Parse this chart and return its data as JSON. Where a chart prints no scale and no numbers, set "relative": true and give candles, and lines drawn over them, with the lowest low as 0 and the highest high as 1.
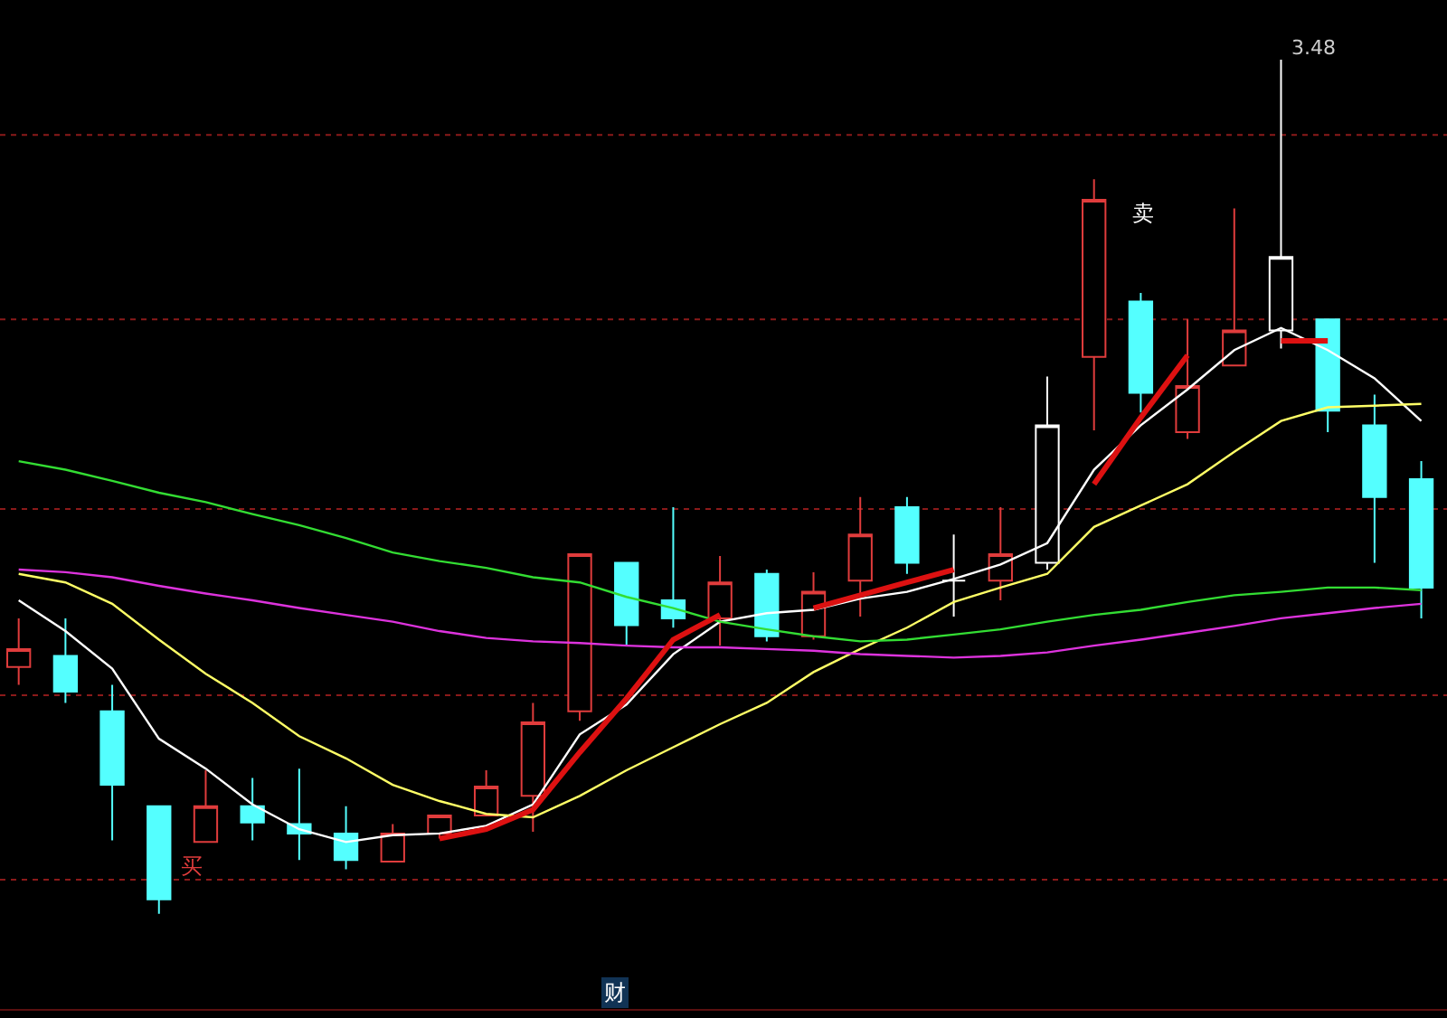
{
  "chart_data": {
    "type": "candlestick",
    "relative": true,
    "categories": [
      null,
      null,
      null,
      null,
      null,
      null,
      null,
      null,
      null,
      null,
      null,
      null,
      null,
      null,
      null,
      null,
      null,
      null,
      null,
      null,
      null,
      null,
      null,
      null,
      null,
      null,
      null,
      null,
      null,
      null,
      null
    ],
    "ohlc": [
      [
        0.289,
        0.346,
        0.268,
        0.31
      ],
      [
        0.302,
        0.346,
        0.247,
        0.26
      ],
      [
        0.237,
        0.268,
        0.086,
        0.151
      ],
      [
        0.126,
        0.126,
        0.0,
        0.017
      ],
      [
        0.084,
        0.168,
        0.084,
        0.126
      ],
      [
        0.126,
        0.159,
        0.086,
        0.107
      ],
      [
        0.105,
        0.17,
        0.063,
        0.094
      ],
      [
        0.094,
        0.126,
        0.052,
        0.063
      ],
      [
        0.061,
        0.105,
        0.061,
        0.094
      ],
      [
        0.094,
        0.115,
        0.088,
        0.115
      ],
      [
        0.115,
        0.168,
        0.115,
        0.149
      ],
      [
        0.138,
        0.247,
        0.096,
        0.224
      ],
      [
        0.237,
        0.421,
        0.226,
        0.421
      ],
      [
        0.411,
        0.411,
        0.314,
        0.338
      ],
      [
        0.367,
        0.476,
        0.335,
        0.346
      ],
      [
        0.346,
        0.419,
        0.314,
        0.388
      ],
      [
        0.398,
        0.403,
        0.319,
        0.325
      ],
      [
        0.325,
        0.4,
        0.321,
        0.377
      ],
      [
        0.39,
        0.488,
        0.348,
        0.444
      ],
      [
        0.476,
        0.488,
        0.398,
        0.411
      ],
      [
        0.39,
        0.444,
        0.348,
        0.39
      ],
      [
        0.39,
        0.476,
        0.367,
        0.421
      ],
      [
        0.411,
        0.629,
        0.403,
        0.572
      ],
      [
        0.652,
        0.86,
        0.566,
        0.836
      ],
      [
        0.717,
        0.727,
        0.587,
        0.61
      ],
      [
        0.564,
        0.696,
        0.556,
        0.618
      ],
      [
        0.642,
        0.826,
        0.642,
        0.683
      ],
      [
        0.683,
        1.0,
        0.662,
        0.769
      ],
      [
        0.696,
        0.696,
        0.564,
        0.589
      ],
      [
        0.572,
        0.608,
        0.411,
        0.488
      ],
      [
        0.509,
        0.53,
        0.346,
        0.382
      ]
    ],
    "colors": [
      "#e03c3c",
      "#54ffff",
      "#54ffff",
      "#54ffff",
      "#e03c3c",
      "#54ffff",
      "#54ffff",
      "#54ffff",
      "#e03c3c",
      "#e03c3c",
      "#e03c3c",
      "#e03c3c",
      "#e03c3c",
      "#54ffff",
      "#54ffff",
      "#e03c3c",
      "#54ffff",
      "#e03c3c",
      "#e03c3c",
      "#54ffff",
      "#ffffff",
      "#e03c3c",
      "#ffffff",
      "#e03c3c",
      "#54ffff",
      "#e03c3c",
      "#e03c3c",
      "#ffffff",
      "#54ffff",
      "#54ffff",
      "#54ffff"
    ],
    "series": [
      {
        "type": "line",
        "color": "#ffffff",
        "values": [
          0.367,
          0.331,
          0.287,
          0.205,
          0.17,
          0.128,
          0.099,
          0.084,
          0.092,
          0.094,
          0.103,
          0.128,
          0.21,
          0.245,
          0.304,
          0.342,
          0.352,
          0.356,
          0.369,
          0.377,
          0.392,
          0.409,
          0.434,
          0.52,
          0.572,
          0.614,
          0.66,
          0.686,
          0.66,
          0.627,
          0.577
        ]
      },
      {
        "type": "line",
        "color": "#ffff66",
        "values": [
          0.398,
          0.388,
          0.363,
          0.321,
          0.281,
          0.247,
          0.208,
          0.182,
          0.151,
          0.132,
          0.117,
          0.113,
          0.138,
          0.168,
          0.195,
          0.222,
          0.247,
          0.283,
          0.31,
          0.335,
          0.365,
          0.382,
          0.398,
          0.453,
          0.478,
          0.503,
          0.541,
          0.577,
          0.593,
          0.595,
          0.597
        ]
      },
      {
        "type": "line",
        "color": "#33dd33",
        "values": [
          0.53,
          0.52,
          0.507,
          0.493,
          0.482,
          0.468,
          0.455,
          0.44,
          0.423,
          0.413,
          0.405,
          0.394,
          0.388,
          0.371,
          0.358,
          0.342,
          0.333,
          0.325,
          0.319,
          0.321,
          0.327,
          0.333,
          0.342,
          0.35,
          0.356,
          0.365,
          0.373,
          0.377,
          0.382,
          0.382,
          0.379
        ]
      },
      {
        "type": "line",
        "color": "#dd33dd",
        "values": [
          0.403,
          0.4,
          0.394,
          0.384,
          0.375,
          0.367,
          0.358,
          0.35,
          0.342,
          0.331,
          0.323,
          0.319,
          0.317,
          0.314,
          0.312,
          0.312,
          0.31,
          0.308,
          0.304,
          0.302,
          0.3,
          0.302,
          0.306,
          0.314,
          0.321,
          0.329,
          0.337,
          0.346,
          0.352,
          0.358,
          0.363
        ]
      },
      {
        "type": "line",
        "color": "#dd1111",
        "values": [
          null,
          null,
          null,
          null,
          null,
          null,
          null,
          null,
          null,
          0.088,
          0.099,
          0.122,
          0.189,
          0.252,
          0.321,
          0.35,
          null,
          0.358,
          0.373,
          0.388,
          0.403,
          null,
          null,
          0.503,
          0.581,
          0.654,
          null,
          0.671,
          0.671,
          null,
          null
        ]
      }
    ],
    "annotations": [
      "买",
      "卖",
      "3.48",
      "财"
    ],
    "ref_lines": [
      {
        "axis": "y",
        "value": 0.912,
        "color": "#8b1a1a",
        "line_style": "dotted"
      },
      {
        "axis": "y",
        "value": 0.696,
        "color": "#8b1a1a",
        "line_style": "dotted"
      },
      {
        "axis": "y",
        "value": 0.474,
        "color": "#8b1a1a",
        "line_style": "dotted"
      },
      {
        "axis": "y",
        "value": 0.256,
        "color": "#8b1a1a",
        "line_style": "dotted"
      },
      {
        "axis": "y",
        "value": 0.04,
        "color": "#8b1a1a",
        "line_style": "dotted"
      }
    ]
  }
}
